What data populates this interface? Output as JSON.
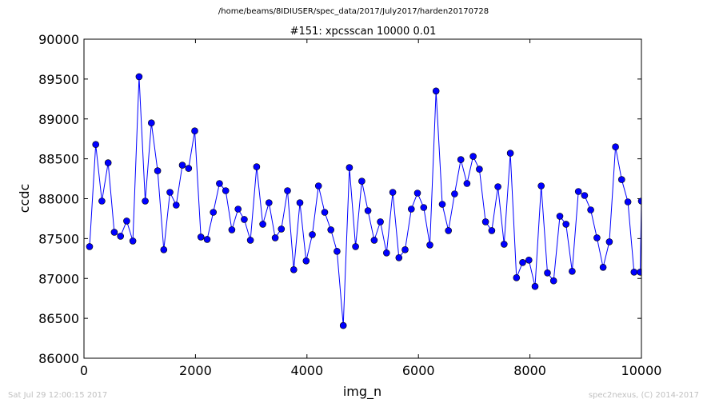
{
  "header": {
    "file_path": "/home/beams/8IDIUSER/spec_data/2017/July2017/harden20170728"
  },
  "footer": {
    "timestamp": "Sat Jul 29 12:00:15 2017",
    "credit": "spec2nexus, (C) 2014-2017"
  },
  "chart_data": {
    "type": "line",
    "title": "#151: xpcsscan 10000 0.01",
    "xlabel": "img_n",
    "ylabel": "ccdc",
    "xlim": [
      0,
      10000
    ],
    "ylim": [
      86000,
      90000
    ],
    "xticks": [
      0,
      2000,
      4000,
      6000,
      8000,
      10000
    ],
    "yticks": [
      86000,
      86500,
      87000,
      87500,
      88000,
      88500,
      89000,
      89500,
      90000
    ],
    "grid": false,
    "marker": "circle",
    "series_color": "#0000ff",
    "series": [
      {
        "x": [
          100,
          211,
          322,
          433,
          544,
          655,
          766,
          877,
          988,
          1099,
          1210,
          1321,
          1432,
          1543,
          1654,
          1765,
          1876,
          1987,
          2098,
          2209,
          2320,
          2431,
          2542,
          2653,
          2764,
          2875,
          2986,
          3097,
          3208,
          3319,
          3430,
          3541,
          3652,
          3763,
          3874,
          3985,
          4096,
          4207,
          4318,
          4429,
          4540,
          4651,
          4762,
          4873,
          4984,
          5095,
          5206,
          5317,
          5428,
          5539,
          5650,
          5761,
          5872,
          5983,
          6094,
          6205,
          6316,
          6427,
          6538,
          6649,
          6760,
          6871,
          6982,
          7093,
          7204,
          7315,
          7426,
          7537,
          7648,
          7759,
          7870,
          7981,
          8092,
          8203,
          8314,
          8425,
          8536,
          8647,
          8758,
          8869,
          8980,
          9091,
          9202,
          9313,
          9424,
          9535,
          9646,
          9757,
          9868,
          9979,
          10000
        ],
        "y": [
          87400,
          88680,
          87970,
          88450,
          87580,
          87530,
          87720,
          87470,
          89530,
          87970,
          88950,
          88350,
          87360,
          88080,
          87920,
          88420,
          88380,
          88850,
          87520,
          87490,
          87830,
          88190,
          88100,
          87610,
          87870,
          87740,
          87480,
          88400,
          87680,
          87950,
          87510,
          87620,
          88100,
          87110,
          87950,
          87220,
          87550,
          88160,
          87830,
          87610,
          87340,
          86410,
          88390,
          87400,
          88220,
          87850,
          87480,
          87710,
          87320,
          88080,
          87260,
          87360,
          87870,
          88070,
          87890,
          87420,
          89350,
          87930,
          87600,
          88060,
          88490,
          88190,
          88530,
          88370,
          87710,
          87600,
          88150,
          87430,
          88570,
          87010,
          87200,
          87230,
          86900,
          88160,
          87070,
          86970,
          87780,
          87680,
          87090,
          88090,
          88040,
          87860,
          87510,
          87140,
          87460,
          88650,
          88240,
          87960,
          87080,
          87080,
          87970
        ]
      }
    ]
  }
}
